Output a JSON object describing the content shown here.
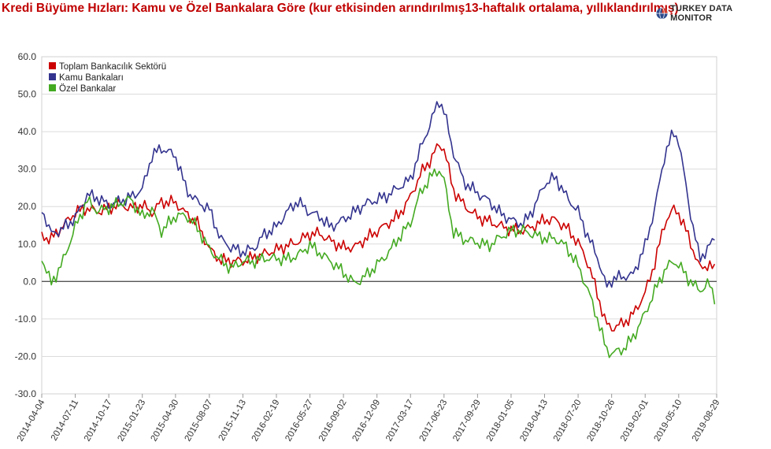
{
  "title": "Kredi Büyüme Hızları: Kamu ve Özel Bankalara Göre (kur etkisinden arındırılmış13-haftalık ortalama, yıllıklandırılmış)",
  "brand": {
    "name": "TURKEY DATA MONITOR",
    "logo_icon": "globe-logo-icon"
  },
  "chart_data": {
    "type": "line",
    "title": "Kredi Büyüme Hızları: Kamu ve Özel Bankalara Göre (kur etkisinden arındırılmış13-haftalık ortalama, yıllıklandırılmış)",
    "xlabel": "",
    "ylabel": "",
    "ylim": [
      -30,
      60
    ],
    "yticks": [
      "60.0",
      "50.0",
      "40.0",
      "30.0",
      "20.0",
      "10.0",
      "0.0",
      "-10.0",
      "-20.0",
      "-30.0"
    ],
    "xlim": [
      "2014-04-04",
      "2019-08-29"
    ],
    "xticks": [
      "2014-04-04",
      "2014-07-11",
      "2014-10-17",
      "2015-01-23",
      "2015-04-30",
      "2015-08-07",
      "2015-11-13",
      "2016-02-19",
      "2016-05-27",
      "2016-09-02",
      "2016-12-09",
      "2017-03-17",
      "2017-06-23",
      "2017-09-29",
      "2018-01-05",
      "2018-04-13",
      "2018-07-20",
      "2018-10-26",
      "2019-02-01",
      "2019-05-10",
      "2019-08-29"
    ],
    "grid": true,
    "legend_position": "top-left",
    "series": [
      {
        "name": "Toplam Bankacılık Sektörü",
        "color": "#cc0000",
        "points": [
          [
            "2014-04-04",
            12
          ],
          [
            "2014-05-01",
            11
          ],
          [
            "2014-06-01",
            14
          ],
          [
            "2014-07-11",
            18
          ],
          [
            "2014-08-15",
            19
          ],
          [
            "2014-09-15",
            18
          ],
          [
            "2014-10-17",
            19
          ],
          [
            "2014-11-20",
            20
          ],
          [
            "2014-12-20",
            19
          ],
          [
            "2015-01-23",
            20
          ],
          [
            "2015-02-20",
            18
          ],
          [
            "2015-03-20",
            21
          ],
          [
            "2015-04-30",
            21
          ],
          [
            "2015-06-01",
            18
          ],
          [
            "2015-07-01",
            16
          ],
          [
            "2015-08-07",
            9
          ],
          [
            "2015-09-10",
            6
          ],
          [
            "2015-10-10",
            6
          ],
          [
            "2015-11-13",
            6
          ],
          [
            "2015-12-15",
            7
          ],
          [
            "2016-01-15",
            8
          ],
          [
            "2016-02-19",
            9
          ],
          [
            "2016-03-20",
            10
          ],
          [
            "2016-04-20",
            11
          ],
          [
            "2016-05-27",
            13
          ],
          [
            "2016-06-25",
            13
          ],
          [
            "2016-07-25",
            11
          ],
          [
            "2016-09-02",
            9
          ],
          [
            "2016-10-05",
            9
          ],
          [
            "2016-11-05",
            11
          ],
          [
            "2016-12-09",
            13
          ],
          [
            "2017-01-10",
            15
          ],
          [
            "2017-02-10",
            17
          ],
          [
            "2017-03-17",
            22
          ],
          [
            "2017-04-15",
            28
          ],
          [
            "2017-05-15",
            32
          ],
          [
            "2017-06-08",
            36
          ],
          [
            "2017-06-23",
            35
          ],
          [
            "2017-07-20",
            24
          ],
          [
            "2017-08-20",
            20
          ],
          [
            "2017-09-29",
            17
          ],
          [
            "2017-11-01",
            16
          ],
          [
            "2017-12-01",
            15
          ],
          [
            "2018-01-05",
            14
          ],
          [
            "2018-02-10",
            14
          ],
          [
            "2018-03-10",
            15
          ],
          [
            "2018-04-13",
            17
          ],
          [
            "2018-05-15",
            17
          ],
          [
            "2018-06-15",
            15
          ],
          [
            "2018-07-20",
            11
          ],
          [
            "2018-08-20",
            5
          ],
          [
            "2018-09-15",
            -3
          ],
          [
            "2018-10-10",
            -11
          ],
          [
            "2018-10-26",
            -12
          ],
          [
            "2018-11-25",
            -11
          ],
          [
            "2018-12-25",
            -9
          ],
          [
            "2019-02-01",
            -3
          ],
          [
            "2019-03-01",
            5
          ],
          [
            "2019-04-01",
            16
          ],
          [
            "2019-04-25",
            19
          ],
          [
            "2019-05-10",
            18
          ],
          [
            "2019-06-10",
            11
          ],
          [
            "2019-07-10",
            3
          ],
          [
            "2019-08-05",
            4
          ],
          [
            "2019-08-29",
            2
          ]
        ]
      },
      {
        "name": "Kamu Bankaları",
        "color": "#33338f",
        "points": [
          [
            "2014-04-04",
            20
          ],
          [
            "2014-05-01",
            13
          ],
          [
            "2014-06-01",
            14
          ],
          [
            "2014-07-11",
            17
          ],
          [
            "2014-08-15",
            23
          ],
          [
            "2014-09-15",
            22
          ],
          [
            "2014-10-17",
            20
          ],
          [
            "2014-11-20",
            21
          ],
          [
            "2014-12-20",
            22
          ],
          [
            "2015-01-23",
            24
          ],
          [
            "2015-02-20",
            33
          ],
          [
            "2015-03-20",
            35
          ],
          [
            "2015-04-30",
            33
          ],
          [
            "2015-06-01",
            24
          ],
          [
            "2015-07-01",
            21
          ],
          [
            "2015-08-07",
            19
          ],
          [
            "2015-09-10",
            11
          ],
          [
            "2015-10-10",
            9
          ],
          [
            "2015-11-13",
            8
          ],
          [
            "2015-12-15",
            9
          ],
          [
            "2016-01-15",
            13
          ],
          [
            "2016-02-19",
            15
          ],
          [
            "2016-03-20",
            19
          ],
          [
            "2016-04-20",
            22
          ],
          [
            "2016-05-27",
            19
          ],
          [
            "2016-06-25",
            18
          ],
          [
            "2016-07-25",
            15
          ],
          [
            "2016-09-02",
            17
          ],
          [
            "2016-10-05",
            19
          ],
          [
            "2016-11-05",
            21
          ],
          [
            "2016-12-09",
            22
          ],
          [
            "2017-01-10",
            23
          ],
          [
            "2017-02-10",
            25
          ],
          [
            "2017-03-17",
            27
          ],
          [
            "2017-04-15",
            35
          ],
          [
            "2017-05-15",
            42
          ],
          [
            "2017-06-08",
            48
          ],
          [
            "2017-06-23",
            45
          ],
          [
            "2017-07-20",
            34
          ],
          [
            "2017-08-20",
            26
          ],
          [
            "2017-09-29",
            23
          ],
          [
            "2017-11-01",
            21
          ],
          [
            "2017-12-01",
            18
          ],
          [
            "2018-01-05",
            16
          ],
          [
            "2018-02-10",
            15
          ],
          [
            "2018-03-10",
            19
          ],
          [
            "2018-04-13",
            26
          ],
          [
            "2018-05-15",
            28
          ],
          [
            "2018-06-15",
            23
          ],
          [
            "2018-07-20",
            19
          ],
          [
            "2018-08-20",
            12
          ],
          [
            "2018-09-15",
            7
          ],
          [
            "2018-10-10",
            -1
          ],
          [
            "2018-10-26",
            1
          ],
          [
            "2018-11-25",
            2
          ],
          [
            "2018-12-25",
            2
          ],
          [
            "2019-02-01",
            10
          ],
          [
            "2019-03-01",
            20
          ],
          [
            "2019-04-01",
            35
          ],
          [
            "2019-04-25",
            40
          ],
          [
            "2019-05-10",
            38
          ],
          [
            "2019-06-10",
            20
          ],
          [
            "2019-07-10",
            6
          ],
          [
            "2019-08-05",
            9
          ],
          [
            "2019-08-29",
            12
          ]
        ]
      },
      {
        "name": "Özel Bankalar",
        "color": "#44aa22",
        "points": [
          [
            "2014-04-04",
            7
          ],
          [
            "2014-05-01",
            0
          ],
          [
            "2014-06-01",
            5
          ],
          [
            "2014-07-11",
            15
          ],
          [
            "2014-08-15",
            22
          ],
          [
            "2014-09-15",
            19
          ],
          [
            "2014-10-17",
            20
          ],
          [
            "2014-11-20",
            21
          ],
          [
            "2014-12-20",
            22
          ],
          [
            "2015-01-23",
            17
          ],
          [
            "2015-02-20",
            19
          ],
          [
            "2015-03-20",
            13
          ],
          [
            "2015-04-30",
            17
          ],
          [
            "2015-06-01",
            17
          ],
          [
            "2015-07-01",
            14
          ],
          [
            "2015-08-07",
            8
          ],
          [
            "2015-09-10",
            5
          ],
          [
            "2015-10-10",
            3
          ],
          [
            "2015-11-13",
            5
          ],
          [
            "2015-12-15",
            5
          ],
          [
            "2016-01-15",
            6
          ],
          [
            "2016-02-19",
            6
          ],
          [
            "2016-03-20",
            6
          ],
          [
            "2016-04-20",
            7
          ],
          [
            "2016-05-27",
            10
          ],
          [
            "2016-06-25",
            8
          ],
          [
            "2016-07-25",
            6
          ],
          [
            "2016-09-02",
            3
          ],
          [
            "2016-10-05",
            0
          ],
          [
            "2016-11-05",
            2
          ],
          [
            "2016-12-09",
            5
          ],
          [
            "2017-01-10",
            8
          ],
          [
            "2017-02-10",
            12
          ],
          [
            "2017-03-17",
            16
          ],
          [
            "2017-04-15",
            24
          ],
          [
            "2017-05-15",
            28
          ],
          [
            "2017-06-08",
            30
          ],
          [
            "2017-06-23",
            27
          ],
          [
            "2017-07-20",
            13
          ],
          [
            "2017-08-20",
            11
          ],
          [
            "2017-09-29",
            10
          ],
          [
            "2017-11-01",
            9
          ],
          [
            "2017-12-01",
            11
          ],
          [
            "2018-01-05",
            13
          ],
          [
            "2018-02-10",
            13
          ],
          [
            "2018-03-10",
            12
          ],
          [
            "2018-04-13",
            11
          ],
          [
            "2018-05-15",
            11
          ],
          [
            "2018-06-15",
            9
          ],
          [
            "2018-07-20",
            4
          ],
          [
            "2018-08-20",
            -3
          ],
          [
            "2018-09-15",
            -10
          ],
          [
            "2018-10-10",
            -18
          ],
          [
            "2018-10-26",
            -19
          ],
          [
            "2018-11-25",
            -18
          ],
          [
            "2018-12-25",
            -15
          ],
          [
            "2019-02-01",
            -8
          ],
          [
            "2019-03-01",
            -2
          ],
          [
            "2019-04-01",
            4
          ],
          [
            "2019-04-25",
            6
          ],
          [
            "2019-05-10",
            5
          ],
          [
            "2019-06-10",
            1
          ],
          [
            "2019-07-10",
            -2
          ],
          [
            "2019-08-05",
            0
          ],
          [
            "2019-08-29",
            -5
          ]
        ]
      }
    ]
  }
}
